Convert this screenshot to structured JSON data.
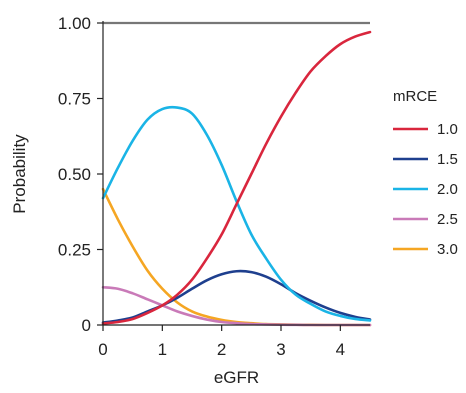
{
  "chart_data": {
    "type": "line",
    "xlabel": "eGFR",
    "ylabel": "Probability",
    "xlim": [
      0,
      4.5
    ],
    "ylim": [
      0,
      1
    ],
    "x_ticks": [
      "0",
      "1",
      "2",
      "3",
      "4"
    ],
    "y_ticks": [
      "0",
      "0.25",
      "0.50",
      "0.75",
      "1.00"
    ],
    "grid": false,
    "legend_title": "mRCE",
    "legend_position": "right",
    "reference_line": {
      "y": 1.0,
      "color": "#777777"
    },
    "x": [
      0,
      0.25,
      0.5,
      0.75,
      1.0,
      1.25,
      1.5,
      1.75,
      2.0,
      2.25,
      2.5,
      2.75,
      3.0,
      3.25,
      3.5,
      3.75,
      4.0,
      4.25,
      4.5
    ],
    "series": [
      {
        "name": "1.0",
        "color": "#d9263d",
        "values": [
          0.005,
          0.01,
          0.02,
          0.04,
          0.065,
          0.1,
          0.15,
          0.22,
          0.3,
          0.4,
          0.5,
          0.6,
          0.69,
          0.77,
          0.84,
          0.89,
          0.93,
          0.955,
          0.97
        ]
      },
      {
        "name": "1.5",
        "color": "#1e3f8e",
        "values": [
          0.008,
          0.015,
          0.025,
          0.045,
          0.065,
          0.09,
          0.12,
          0.148,
          0.168,
          0.178,
          0.175,
          0.16,
          0.135,
          0.105,
          0.08,
          0.058,
          0.04,
          0.027,
          0.018
        ]
      },
      {
        "name": "2.0",
        "color": "#1ab4e6",
        "values": [
          0.42,
          0.52,
          0.61,
          0.68,
          0.715,
          0.72,
          0.7,
          0.63,
          0.53,
          0.41,
          0.3,
          0.22,
          0.15,
          0.1,
          0.07,
          0.045,
          0.03,
          0.02,
          0.015
        ]
      },
      {
        "name": "2.5",
        "color": "#c97ab8",
        "values": [
          0.125,
          0.12,
          0.105,
          0.085,
          0.065,
          0.045,
          0.03,
          0.018,
          0.01,
          0.006,
          0.003,
          0.002,
          0.001,
          0.0005,
          0,
          0,
          0,
          0,
          0
        ]
      },
      {
        "name": "3.0",
        "color": "#f5a623",
        "values": [
          0.45,
          0.35,
          0.26,
          0.18,
          0.12,
          0.075,
          0.045,
          0.028,
          0.017,
          0.01,
          0.006,
          0.003,
          0.002,
          0.001,
          0.0005,
          0,
          0,
          0,
          0
        ]
      }
    ]
  }
}
